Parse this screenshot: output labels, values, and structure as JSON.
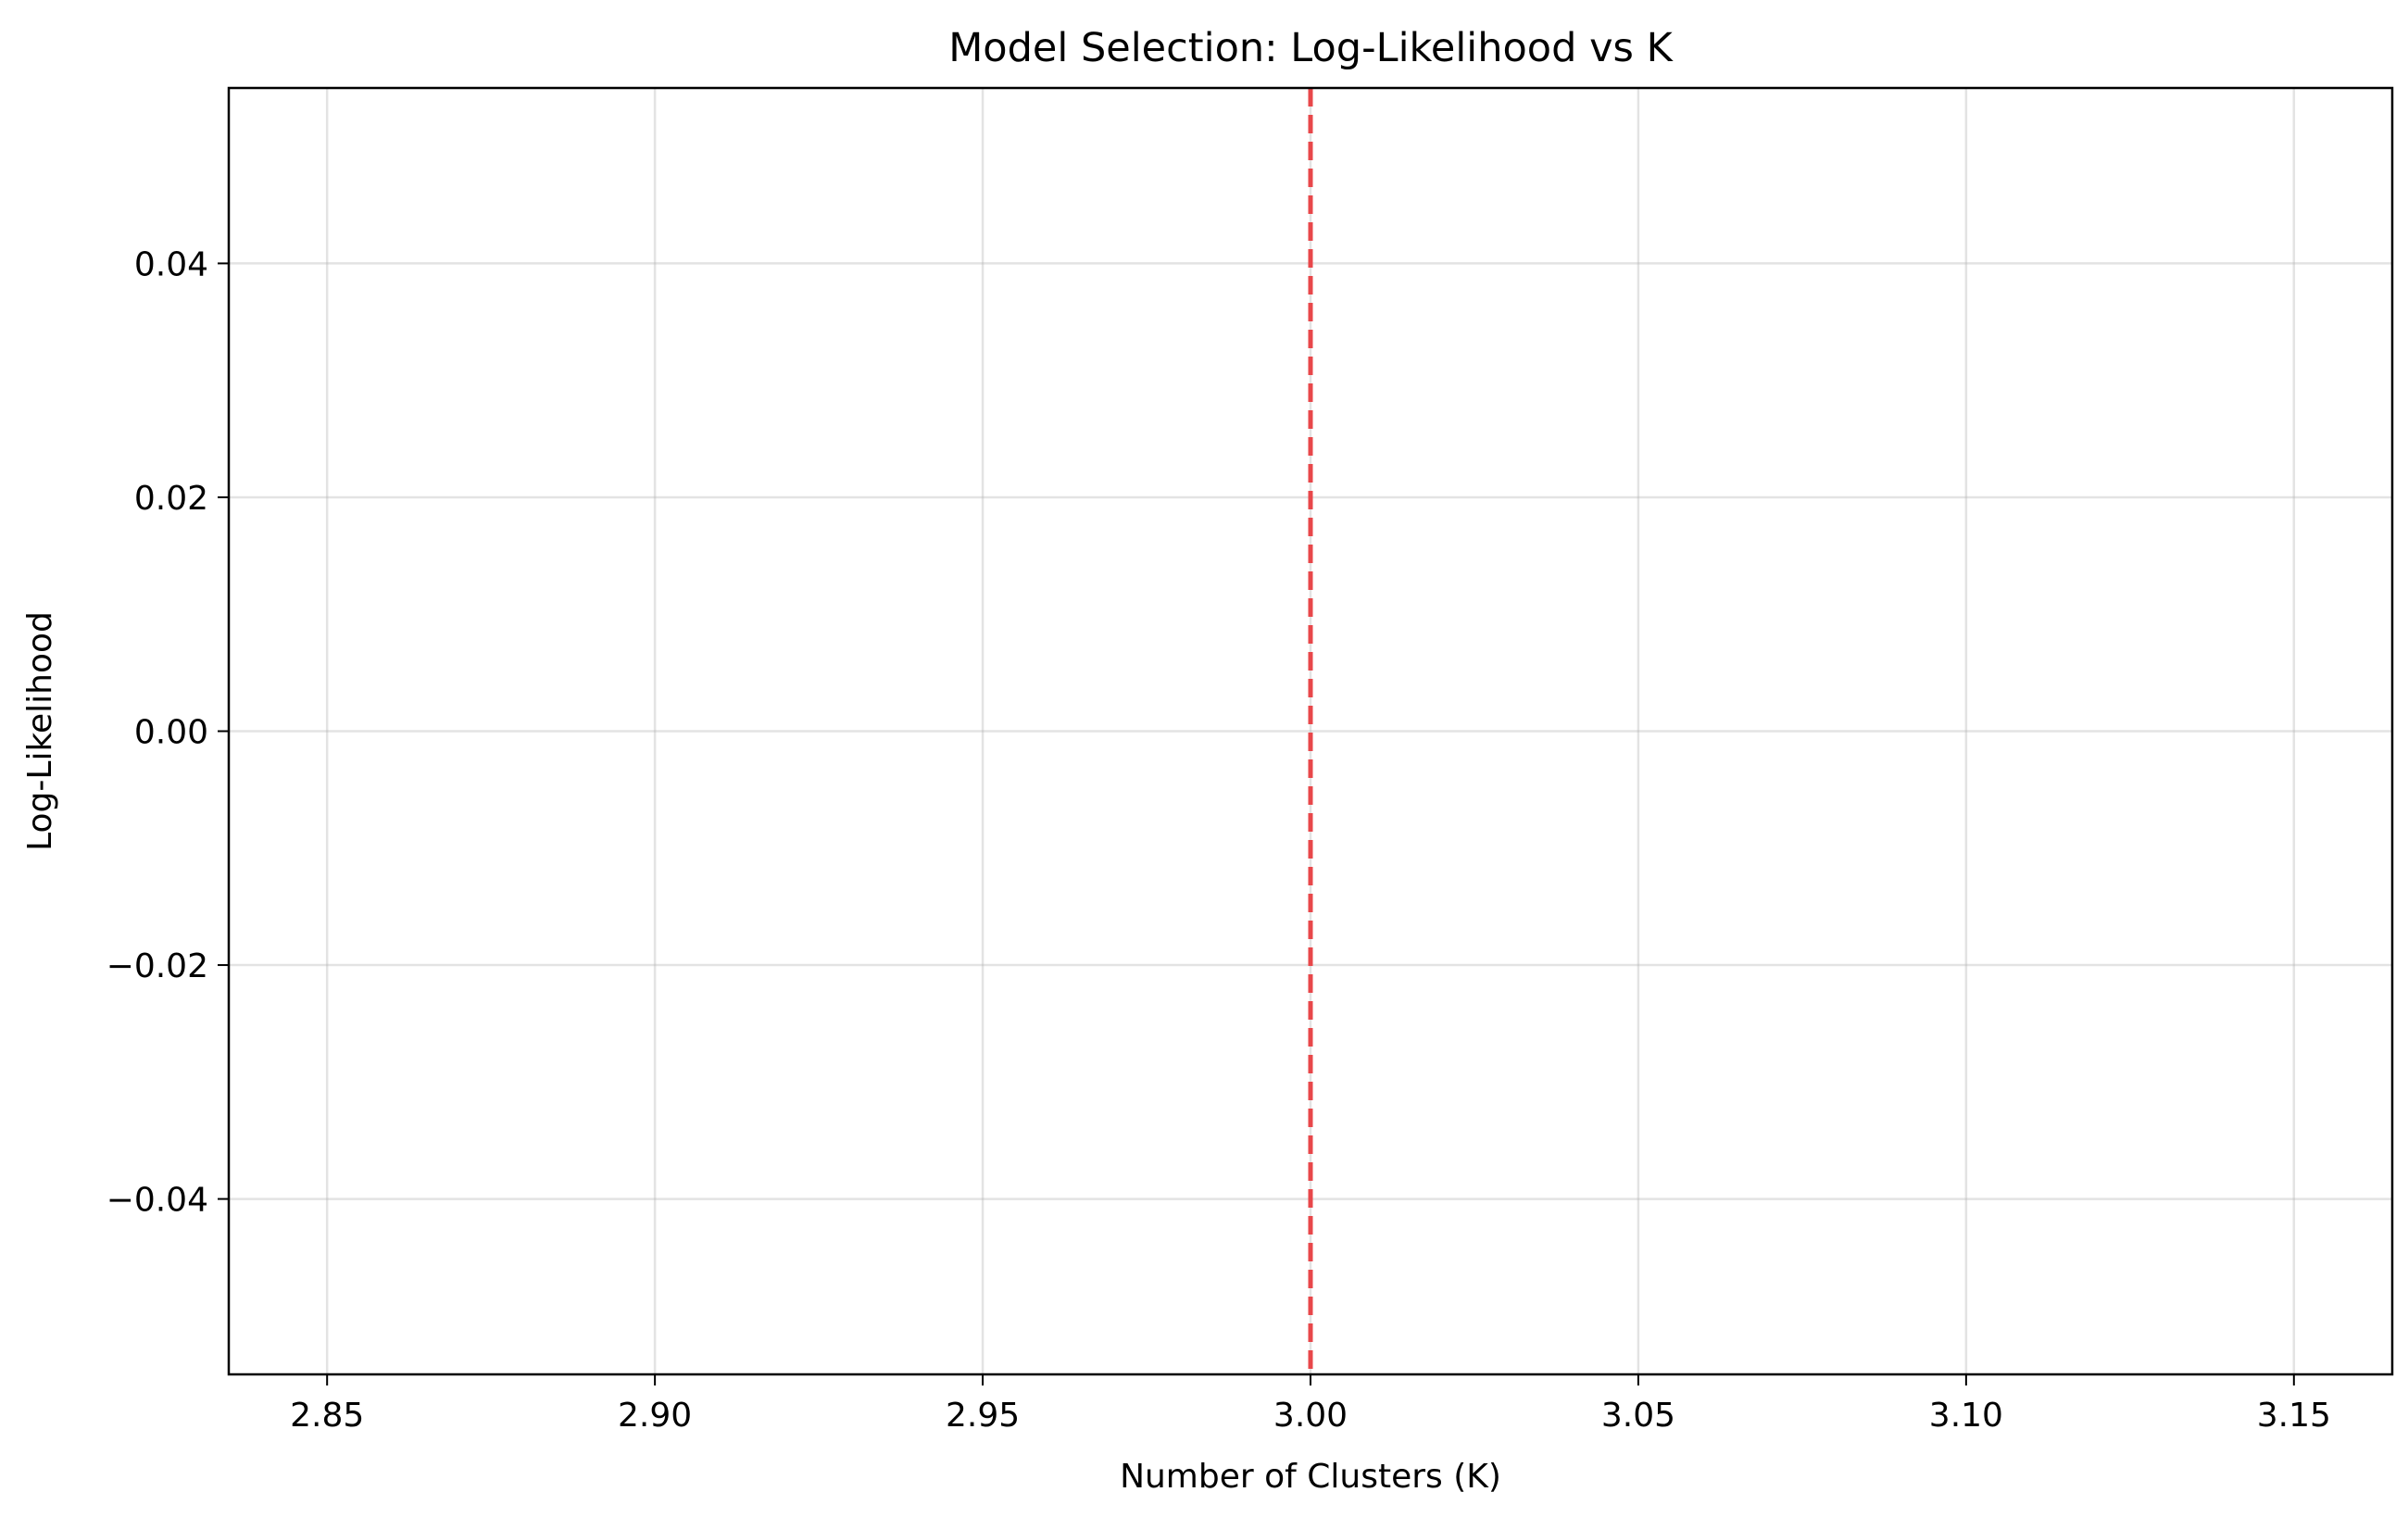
{
  "chart_data": {
    "type": "line",
    "title": "Model Selection: Log-Likelihood vs K",
    "xlabel": "Number of Clusters (K)",
    "ylabel": "Log-Likelihood",
    "xlim": [
      2.835,
      3.165
    ],
    "ylim": [
      -0.055,
      0.055
    ],
    "x_ticks": [
      2.85,
      2.9,
      2.95,
      3.0,
      3.05,
      3.1,
      3.15
    ],
    "x_tick_labels": [
      "2.85",
      "2.90",
      "2.95",
      "3.00",
      "3.05",
      "3.10",
      "3.15"
    ],
    "y_ticks": [
      -0.04,
      -0.02,
      0.0,
      0.02,
      0.04
    ],
    "y_tick_labels": [
      "−0.04",
      "−0.02",
      "0.00",
      "0.02",
      "0.04"
    ],
    "grid": true,
    "series": [],
    "vertical_lines": [
      {
        "x": 3.0,
        "color": "#e8474a",
        "style": "dashed"
      }
    ]
  }
}
